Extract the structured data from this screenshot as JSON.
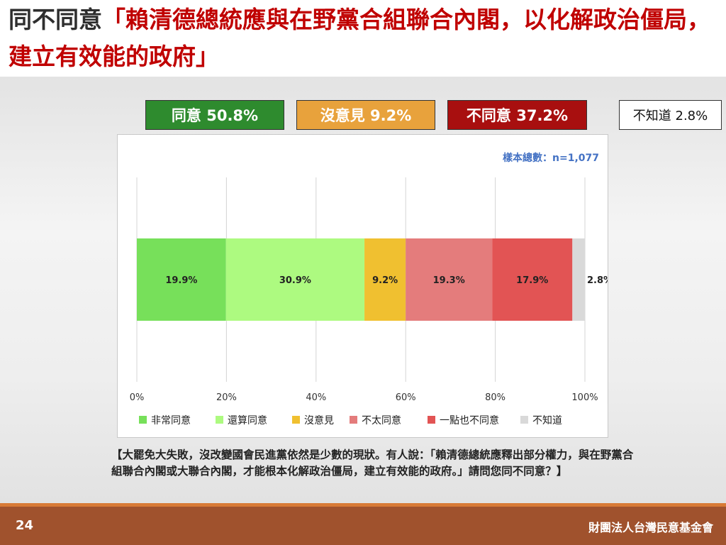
{
  "slide": {
    "title_prefix": "同不同意",
    "title_highlight": "「賴清德總統應與在野黨合組聯合內閣，以化解政治僵局，建立有效能的政府」",
    "summary": [
      {
        "label": "同意 50.8%",
        "color": "#2e8b2e"
      },
      {
        "label": "沒意見 9.2%",
        "color": "#e8a23c"
      },
      {
        "label": "不同意 37.2%",
        "color": "#a80f0f"
      },
      {
        "label": "不知道 2.8%",
        "color": "#ffffff"
      }
    ],
    "sample_size": "樣本總數：n=1,077",
    "question": "【大罷免大失敗，沒改變國會民進黨依然是少數的現狀。有人說：「賴清德總統應釋出部分權力，與在野黨合組聯合內閣或大聯合內閣，才能根本化解政治僵局，建立有效能的政府。」請問您同不同意？】",
    "page_number": "24",
    "organization": "財團法人台灣民意基金會"
  },
  "chart_data": {
    "type": "bar",
    "orientation": "horizontal-stacked",
    "xlim": [
      0,
      100
    ],
    "ticks": [
      "0%",
      "20%",
      "40%",
      "60%",
      "80%",
      "100%"
    ],
    "grid": true,
    "legend_position": "bottom",
    "series": [
      {
        "name": "非常同意",
        "value": 19.9,
        "label": "19.9%",
        "color": "#77e05a"
      },
      {
        "name": "還算同意",
        "value": 30.9,
        "label": "30.9%",
        "color": "#adfa80"
      },
      {
        "name": "沒意見",
        "value": 9.2,
        "label": "9.2%",
        "color": "#f0c030"
      },
      {
        "name": "不太同意",
        "value": 19.3,
        "label": "19.3%",
        "color": "#e47c7c"
      },
      {
        "name": "一點也不同意",
        "value": 17.9,
        "label": "17.9%",
        "color": "#e25454"
      },
      {
        "name": "不知道",
        "value": 2.8,
        "label": "2.8%",
        "color": "#d9d9d9"
      }
    ]
  }
}
